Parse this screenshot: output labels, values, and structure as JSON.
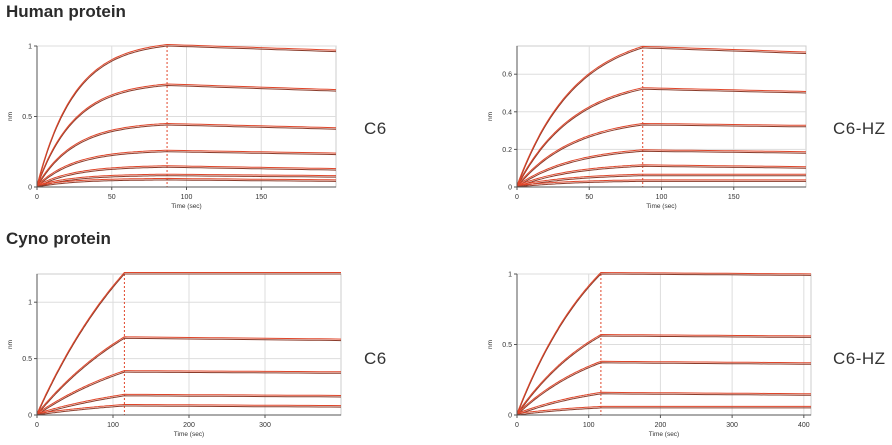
{
  "sections": [
    {
      "title": "Human protein"
    },
    {
      "title": "Cyno protein"
    }
  ],
  "colors": {
    "fit": "#e0462a",
    "data": "#8a3b2a",
    "grid": "#dddddd",
    "axis": "#555555"
  },
  "chart_data": [
    {
      "type": "line",
      "panel_label": "C6",
      "xlabel": "Time (sec)",
      "ylabel": "nm",
      "xlim": [
        0,
        200
      ],
      "ylim": [
        0,
        1.0
      ],
      "xticks": [
        0,
        50,
        100,
        150
      ],
      "yticks": [
        0,
        0.5,
        1
      ],
      "grid": true,
      "legend": "none",
      "association_end": 87,
      "plateaus": [
        1.0,
        0.72,
        0.44,
        0.25,
        0.14,
        0.08,
        0.05
      ],
      "end_values": [
        0.96,
        0.68,
        0.41,
        0.23,
        0.12,
        0.07,
        0.04
      ],
      "rate": 0.04
    },
    {
      "type": "line",
      "panel_label": "C6-HZ",
      "xlabel": "Time (sec)",
      "ylabel": "nm",
      "xlim": [
        0,
        200
      ],
      "ylim": [
        0,
        0.75
      ],
      "xticks": [
        0,
        50,
        100,
        150
      ],
      "yticks": [
        0,
        0.2,
        0.4,
        0.6
      ],
      "grid": true,
      "legend": "none",
      "association_end": 87,
      "plateaus": [
        0.74,
        0.52,
        0.33,
        0.19,
        0.11,
        0.06,
        0.03
      ],
      "end_values": [
        0.71,
        0.5,
        0.32,
        0.18,
        0.1,
        0.06,
        0.03
      ],
      "rate": 0.025
    },
    {
      "type": "line",
      "panel_label": "C6",
      "xlabel": "Time (sec)",
      "ylabel": "nm",
      "xlim": [
        0,
        400
      ],
      "ylim": [
        0,
        1.25
      ],
      "xticks": [
        0,
        100,
        200,
        300
      ],
      "yticks": [
        0,
        0.5,
        1
      ],
      "grid": true,
      "legend": "none",
      "association_end": 115,
      "plateaus": [
        1.25,
        0.68,
        0.38,
        0.17,
        0.08
      ],
      "end_values": [
        1.25,
        0.66,
        0.37,
        0.16,
        0.07
      ],
      "rate": 0.006
    },
    {
      "type": "line",
      "panel_label": "C6-HZ",
      "xlabel": "Time (sec)",
      "ylabel": "nm",
      "xlim": [
        0,
        410
      ],
      "ylim": [
        0,
        1.0
      ],
      "xticks": [
        0,
        100,
        200,
        300,
        400
      ],
      "yticks": [
        0,
        0.5,
        1
      ],
      "grid": true,
      "legend": "none",
      "association_end": 117,
      "plateaus": [
        1.0,
        0.56,
        0.37,
        0.15,
        0.05
      ],
      "end_values": [
        0.99,
        0.55,
        0.36,
        0.14,
        0.05
      ],
      "rate": 0.008
    }
  ]
}
